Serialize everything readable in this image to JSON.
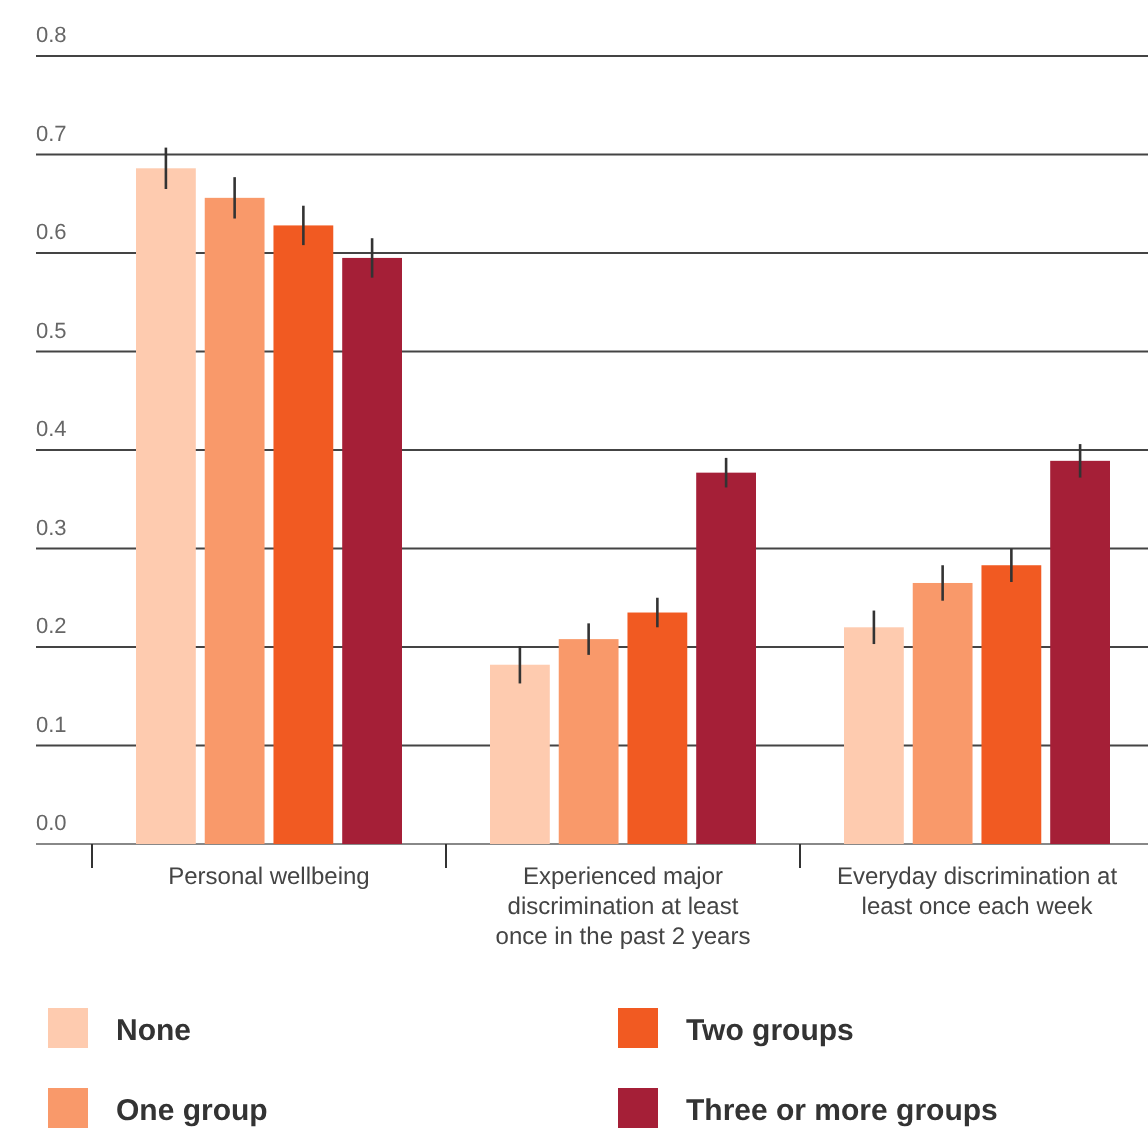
{
  "chart_data": {
    "type": "bar",
    "categories": [
      "Personal wellbeing",
      "Experienced major discrimination at least once in the past 2 years",
      "Everyday discrimination at least once each week"
    ],
    "series": [
      {
        "name": "None",
        "color": "#fecbaf",
        "values": [
          0.686,
          0.182,
          0.22
        ],
        "errors": [
          0.021,
          0.019,
          0.017
        ]
      },
      {
        "name": "One group",
        "color": "#f9996a",
        "values": [
          0.656,
          0.208,
          0.265
        ],
        "errors": [
          0.021,
          0.016,
          0.018
        ]
      },
      {
        "name": "Two groups",
        "color": "#f15a22",
        "values": [
          0.628,
          0.235,
          0.283
        ],
        "errors": [
          0.02,
          0.015,
          0.017
        ]
      },
      {
        "name": "Three or more groups",
        "color": "#a51f37",
        "values": [
          0.595,
          0.377,
          0.389
        ],
        "errors": [
          0.02,
          0.015,
          0.017
        ]
      }
    ],
    "ylim": [
      0,
      0.8
    ],
    "yticks": [
      {
        "value": 0,
        "label": "0.0"
      },
      {
        "value": 0.1,
        "label": "0.1"
      },
      {
        "value": 0.2,
        "label": "0.2"
      },
      {
        "value": 0.3,
        "label": "0.3"
      },
      {
        "value": 0.4,
        "label": "0.4"
      },
      {
        "value": 0.5,
        "label": "0.5"
      },
      {
        "value": 0.6,
        "label": "0.6"
      },
      {
        "value": 0.7,
        "label": "0.7"
      },
      {
        "value": 0.8,
        "label": "0.8"
      }
    ],
    "grid": "y",
    "legend": "bottom"
  }
}
